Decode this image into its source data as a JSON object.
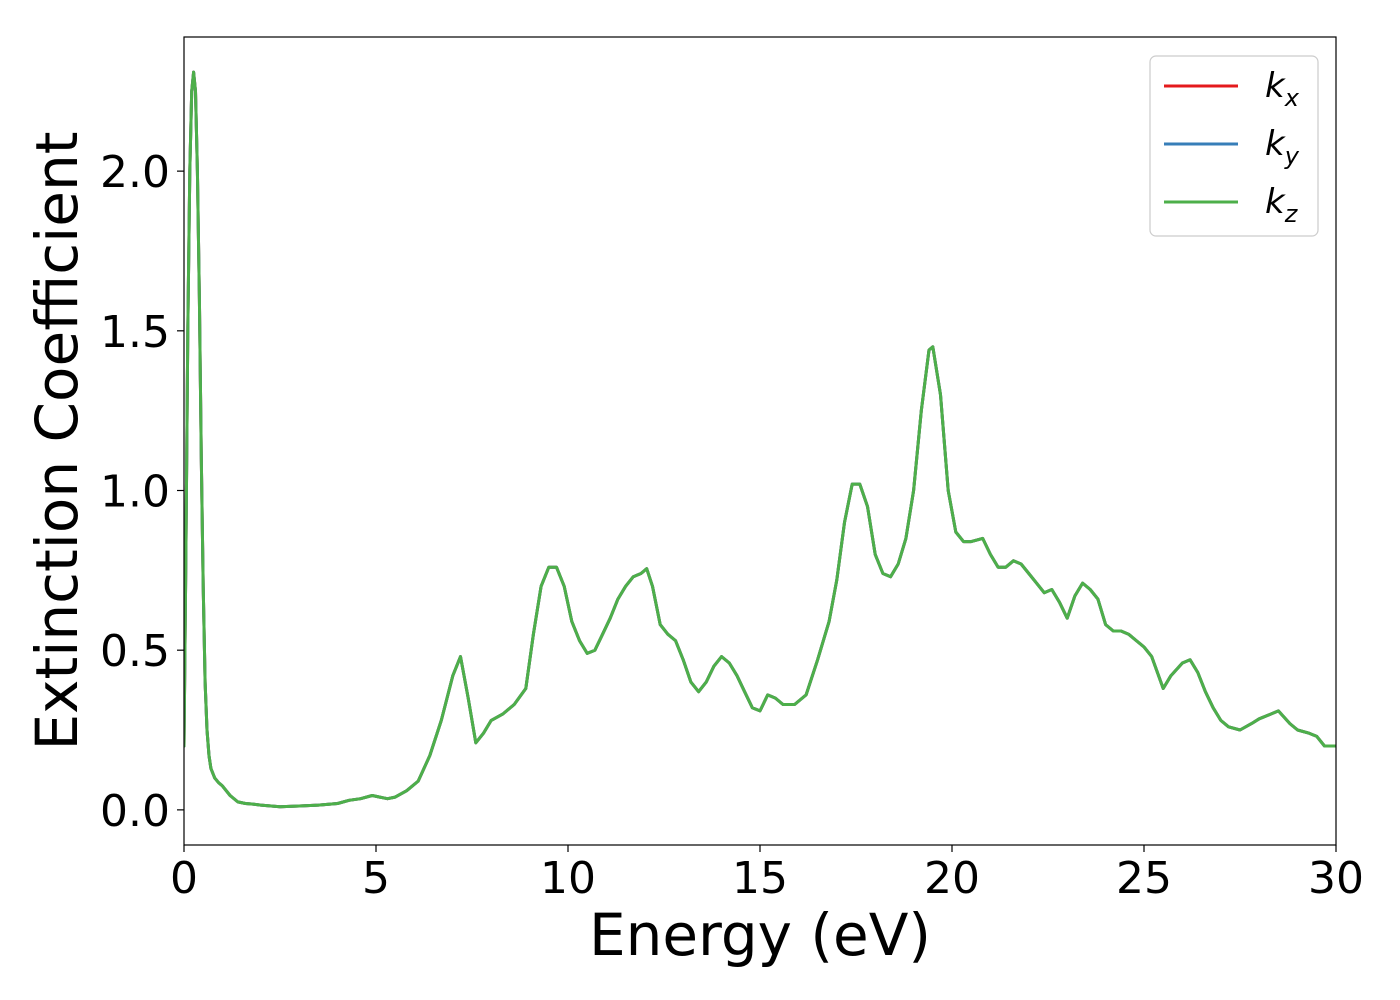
{
  "chart_data": {
    "type": "line",
    "title": "",
    "xlabel": "Energy (eV)",
    "ylabel": "Extinction Coefficient",
    "xlim": [
      0,
      30
    ],
    "ylim": [
      -0.11,
      2.42
    ],
    "xticks": [
      0,
      5,
      10,
      15,
      20,
      25,
      30
    ],
    "xtick_labels": [
      "0",
      "5",
      "10",
      "15",
      "20",
      "25",
      "30"
    ],
    "yticks": [
      0.0,
      0.5,
      1.0,
      1.5,
      2.0
    ],
    "ytick_labels": [
      "0.0",
      "0.5",
      "1.0",
      "1.5",
      "2.0"
    ],
    "grid": false,
    "legend_position": "top-right",
    "x": [
      0,
      0.05,
      0.1,
      0.15,
      0.2,
      0.25,
      0.3,
      0.35,
      0.4,
      0.45,
      0.5,
      0.55,
      0.6,
      0.65,
      0.7,
      0.8,
      0.9,
      1.0,
      1.2,
      1.4,
      1.6,
      1.8,
      2.0,
      2.5,
      3.0,
      3.5,
      4.0,
      4.3,
      4.6,
      4.9,
      5.1,
      5.3,
      5.5,
      5.8,
      6.1,
      6.4,
      6.7,
      7.0,
      7.2,
      7.4,
      7.6,
      7.8,
      8.0,
      8.3,
      8.6,
      8.9,
      9.1,
      9.3,
      9.5,
      9.7,
      9.9,
      10.1,
      10.3,
      10.5,
      10.7,
      10.9,
      11.1,
      11.3,
      11.5,
      11.7,
      11.9,
      12.05,
      12.2,
      12.4,
      12.6,
      12.8,
      13.0,
      13.2,
      13.4,
      13.6,
      13.8,
      14.0,
      14.2,
      14.4,
      14.6,
      14.8,
      15.0,
      15.2,
      15.4,
      15.6,
      15.9,
      16.2,
      16.5,
      16.8,
      17.0,
      17.2,
      17.4,
      17.6,
      17.8,
      18.0,
      18.2,
      18.4,
      18.6,
      18.8,
      19.0,
      19.2,
      19.4,
      19.5,
      19.7,
      19.9,
      20.1,
      20.3,
      20.5,
      20.8,
      21.0,
      21.2,
      21.4,
      21.6,
      21.8,
      22.0,
      22.2,
      22.4,
      22.6,
      22.8,
      23.0,
      23.2,
      23.4,
      23.6,
      23.8,
      24.0,
      24.2,
      24.4,
      24.6,
      24.8,
      25.0,
      25.2,
      25.5,
      25.7,
      26.0,
      26.2,
      26.4,
      26.6,
      26.8,
      27.0,
      27.2,
      27.5,
      27.8,
      28.0,
      28.3,
      28.5,
      28.8,
      29.0,
      29.3,
      29.5,
      29.7,
      30.0
    ],
    "series": [
      {
        "name": "k_x",
        "color": "#e41a1c",
        "values": [
          0.2,
          0.8,
          1.5,
          2.0,
          2.25,
          2.31,
          2.25,
          2.0,
          1.6,
          1.1,
          0.7,
          0.4,
          0.25,
          0.17,
          0.13,
          0.1,
          0.085,
          0.075,
          0.045,
          0.025,
          0.02,
          0.018,
          0.015,
          0.01,
          0.012,
          0.015,
          0.02,
          0.03,
          0.035,
          0.045,
          0.04,
          0.035,
          0.04,
          0.06,
          0.09,
          0.17,
          0.28,
          0.42,
          0.48,
          0.35,
          0.21,
          0.24,
          0.28,
          0.3,
          0.33,
          0.38,
          0.55,
          0.7,
          0.76,
          0.76,
          0.7,
          0.59,
          0.53,
          0.49,
          0.5,
          0.55,
          0.6,
          0.66,
          0.7,
          0.73,
          0.74,
          0.755,
          0.7,
          0.58,
          0.55,
          0.53,
          0.47,
          0.4,
          0.37,
          0.4,
          0.45,
          0.48,
          0.46,
          0.42,
          0.37,
          0.32,
          0.31,
          0.36,
          0.35,
          0.33,
          0.33,
          0.36,
          0.47,
          0.59,
          0.72,
          0.9,
          1.02,
          1.02,
          0.95,
          0.8,
          0.74,
          0.73,
          0.77,
          0.85,
          1.0,
          1.25,
          1.44,
          1.45,
          1.3,
          1.0,
          0.87,
          0.84,
          0.84,
          0.85,
          0.8,
          0.76,
          0.76,
          0.78,
          0.77,
          0.74,
          0.71,
          0.68,
          0.69,
          0.65,
          0.6,
          0.67,
          0.71,
          0.69,
          0.66,
          0.58,
          0.56,
          0.56,
          0.55,
          0.53,
          0.51,
          0.48,
          0.38,
          0.42,
          0.46,
          0.47,
          0.43,
          0.37,
          0.32,
          0.28,
          0.26,
          0.25,
          0.27,
          0.285,
          0.3,
          0.31,
          0.27,
          0.25,
          0.24,
          0.23,
          0.2,
          0.2
        ]
      },
      {
        "name": "k_y",
        "color": "#377eb8",
        "values": [
          0.2,
          0.8,
          1.5,
          2.0,
          2.25,
          2.31,
          2.25,
          2.0,
          1.6,
          1.1,
          0.7,
          0.4,
          0.25,
          0.17,
          0.13,
          0.1,
          0.085,
          0.075,
          0.045,
          0.025,
          0.02,
          0.018,
          0.015,
          0.01,
          0.012,
          0.015,
          0.02,
          0.03,
          0.035,
          0.045,
          0.04,
          0.035,
          0.04,
          0.06,
          0.09,
          0.17,
          0.28,
          0.42,
          0.48,
          0.35,
          0.21,
          0.24,
          0.28,
          0.3,
          0.33,
          0.38,
          0.55,
          0.7,
          0.76,
          0.76,
          0.7,
          0.59,
          0.53,
          0.49,
          0.5,
          0.55,
          0.6,
          0.66,
          0.7,
          0.73,
          0.74,
          0.755,
          0.7,
          0.58,
          0.55,
          0.53,
          0.47,
          0.4,
          0.37,
          0.4,
          0.45,
          0.48,
          0.46,
          0.42,
          0.37,
          0.32,
          0.31,
          0.36,
          0.35,
          0.33,
          0.33,
          0.36,
          0.47,
          0.59,
          0.72,
          0.9,
          1.02,
          1.02,
          0.95,
          0.8,
          0.74,
          0.73,
          0.77,
          0.85,
          1.0,
          1.25,
          1.44,
          1.45,
          1.3,
          1.0,
          0.87,
          0.84,
          0.84,
          0.85,
          0.8,
          0.76,
          0.76,
          0.78,
          0.77,
          0.74,
          0.71,
          0.68,
          0.69,
          0.65,
          0.6,
          0.67,
          0.71,
          0.69,
          0.66,
          0.58,
          0.56,
          0.56,
          0.55,
          0.53,
          0.51,
          0.48,
          0.38,
          0.42,
          0.46,
          0.47,
          0.43,
          0.37,
          0.32,
          0.28,
          0.26,
          0.25,
          0.27,
          0.285,
          0.3,
          0.31,
          0.27,
          0.25,
          0.24,
          0.23,
          0.2,
          0.2
        ]
      },
      {
        "name": "k_z",
        "color": "#4daf4a",
        "values": [
          0.2,
          0.8,
          1.5,
          2.0,
          2.25,
          2.31,
          2.25,
          2.0,
          1.6,
          1.1,
          0.7,
          0.4,
          0.25,
          0.17,
          0.13,
          0.1,
          0.085,
          0.075,
          0.045,
          0.025,
          0.02,
          0.018,
          0.015,
          0.01,
          0.012,
          0.015,
          0.02,
          0.03,
          0.035,
          0.045,
          0.04,
          0.035,
          0.04,
          0.06,
          0.09,
          0.17,
          0.28,
          0.42,
          0.48,
          0.35,
          0.21,
          0.24,
          0.28,
          0.3,
          0.33,
          0.38,
          0.55,
          0.7,
          0.76,
          0.76,
          0.7,
          0.59,
          0.53,
          0.49,
          0.5,
          0.55,
          0.6,
          0.66,
          0.7,
          0.73,
          0.74,
          0.755,
          0.7,
          0.58,
          0.55,
          0.53,
          0.47,
          0.4,
          0.37,
          0.4,
          0.45,
          0.48,
          0.46,
          0.42,
          0.37,
          0.32,
          0.31,
          0.36,
          0.35,
          0.33,
          0.33,
          0.36,
          0.47,
          0.59,
          0.72,
          0.9,
          1.02,
          1.02,
          0.95,
          0.8,
          0.74,
          0.73,
          0.77,
          0.85,
          1.0,
          1.25,
          1.44,
          1.45,
          1.3,
          1.0,
          0.87,
          0.84,
          0.84,
          0.85,
          0.8,
          0.76,
          0.76,
          0.78,
          0.77,
          0.74,
          0.71,
          0.68,
          0.69,
          0.65,
          0.6,
          0.67,
          0.71,
          0.69,
          0.66,
          0.58,
          0.56,
          0.56,
          0.55,
          0.53,
          0.51,
          0.48,
          0.38,
          0.42,
          0.46,
          0.47,
          0.43,
          0.37,
          0.32,
          0.28,
          0.26,
          0.25,
          0.27,
          0.285,
          0.3,
          0.31,
          0.27,
          0.25,
          0.24,
          0.23,
          0.2,
          0.2
        ]
      }
    ],
    "legend": [
      {
        "base": "k",
        "sub": "x",
        "color": "#e41a1c"
      },
      {
        "base": "k",
        "sub": "y",
        "color": "#377eb8"
      },
      {
        "base": "k",
        "sub": "z",
        "color": "#4daf4a"
      }
    ]
  }
}
